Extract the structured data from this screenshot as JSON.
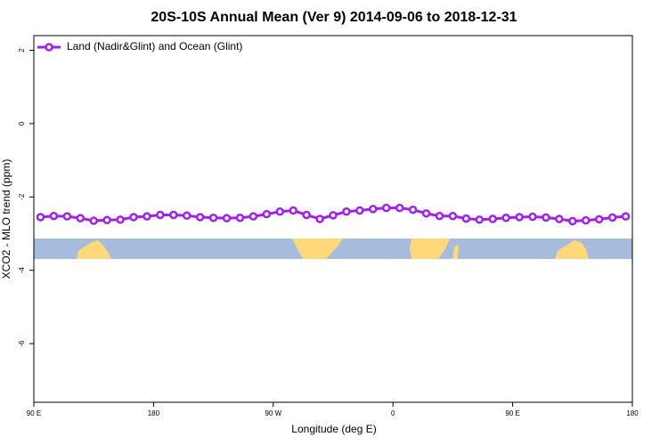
{
  "chart_data": {
    "type": "line",
    "title": "20S-10S Annual Mean (Ver 9)   2014-09-06 to 2018-12-31",
    "xlabel": "Longitude (deg E)",
    "ylabel": "XCO2 - MLO trend (ppm)",
    "x": [
      95,
      105,
      115,
      125,
      135,
      145,
      155,
      165,
      175,
      185,
      195,
      205,
      215,
      225,
      235,
      245,
      255,
      265,
      275,
      285,
      295,
      305,
      315,
      325,
      335,
      345,
      355,
      365,
      375,
      385,
      395,
      405,
      415,
      425,
      435,
      445,
      455,
      465,
      475,
      485,
      495,
      505,
      515,
      525,
      535
    ],
    "series": [
      {
        "name": "Land (Nadir&Glint) and Ocean (Glint)",
        "color": "#a020f0",
        "values": [
          -2.55,
          -2.52,
          -2.53,
          -2.58,
          -2.65,
          -2.63,
          -2.62,
          -2.55,
          -2.53,
          -2.49,
          -2.49,
          -2.51,
          -2.55,
          -2.57,
          -2.58,
          -2.57,
          -2.53,
          -2.47,
          -2.4,
          -2.37,
          -2.49,
          -2.6,
          -2.5,
          -2.4,
          -2.37,
          -2.33,
          -2.3,
          -2.3,
          -2.35,
          -2.45,
          -2.52,
          -2.52,
          -2.59,
          -2.62,
          -2.6,
          -2.57,
          -2.55,
          -2.54,
          -2.56,
          -2.6,
          -2.66,
          -2.64,
          -2.61,
          -2.56,
          -2.53
        ]
      }
    ],
    "xlim": [
      90,
      540
    ],
    "xticks": [
      {
        "value": 90,
        "label": "90 E"
      },
      180,
      {
        "value": 270,
        "label": "90 W"
      },
      {
        "value": 360,
        "label": "0"
      },
      {
        "value": 450,
        "label": "90 E"
      },
      {
        "value": 540,
        "label": "180"
      }
    ],
    "ylim": [
      -7.6,
      2.4
    ],
    "yticks": [
      2,
      0,
      -2,
      -4,
      -6
    ],
    "legend": "top-left"
  }
}
